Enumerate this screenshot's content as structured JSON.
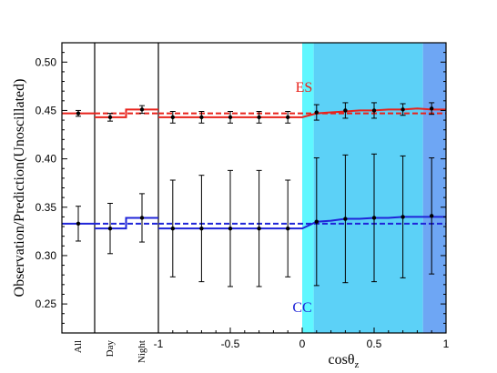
{
  "chart_data": {
    "type": "line",
    "ylabel": "Observation/Prediction(Unoscillated)",
    "xlabel_base": "cosθ",
    "xlabel_sub": "z",
    "ylim": [
      0.22,
      0.52
    ],
    "xlim": [
      -1,
      1
    ],
    "y_ticks": [
      0.25,
      0.3,
      0.35,
      0.4,
      0.45,
      0.5
    ],
    "y_tick_labels": [
      "0.25",
      "0.30",
      "0.35",
      "0.40",
      "0.45",
      "0.50"
    ],
    "x_ticks": [
      -1,
      -0.5,
      0,
      0.5,
      1
    ],
    "x_tick_labels": [
      "-1",
      "-0.5",
      "0",
      "0.5",
      "1"
    ],
    "categories": [
      "All",
      "Day",
      "Night"
    ],
    "grid": false,
    "shaded_bands": [
      {
        "x0": 0.0,
        "x1": 0.08,
        "color": "#5ff7ff"
      },
      {
        "x0": 0.08,
        "x1": 0.84,
        "color": "#5cd1f7"
      },
      {
        "x0": 0.84,
        "x1": 1.0,
        "color": "#6ea6f4"
      }
    ],
    "series": [
      {
        "name": "ES",
        "color": "#e8221b",
        "all": {
          "value": 0.447,
          "err": 0.003,
          "model": 0.447
        },
        "day": {
          "value": 0.443,
          "err": 0.004,
          "model": 0.443,
          "pred": 0.447
        },
        "night": {
          "value": 0.451,
          "err": 0.004,
          "model": 0.451,
          "pred": 0.447
        },
        "x": [
          -0.9,
          -0.7,
          -0.5,
          -0.3,
          -0.1,
          0.1,
          0.3,
          0.5,
          0.7,
          0.9
        ],
        "values": [
          0.443,
          0.443,
          0.443,
          0.443,
          0.443,
          0.448,
          0.45,
          0.45,
          0.451,
          0.452
        ],
        "errors": [
          0.006,
          0.006,
          0.006,
          0.006,
          0.006,
          0.008,
          0.008,
          0.008,
          0.006,
          0.006
        ],
        "model_x": [
          -1.0,
          0.0,
          0.1,
          0.2,
          0.3,
          0.4,
          0.5,
          0.6,
          0.7,
          0.8,
          0.9,
          1.0
        ],
        "model_y": [
          0.443,
          0.443,
          0.447,
          0.448,
          0.449,
          0.45,
          0.45,
          0.451,
          0.451,
          0.452,
          0.451,
          0.451
        ],
        "pred": 0.447
      },
      {
        "name": "CC",
        "color": "#1f24d8",
        "all": {
          "value": 0.333,
          "err": 0.018,
          "model": 0.333
        },
        "day": {
          "value": 0.328,
          "err": 0.026,
          "model": 0.328,
          "pred": 0.333
        },
        "night": {
          "value": 0.339,
          "err": 0.025,
          "model": 0.339,
          "pred": 0.333
        },
        "x": [
          -0.9,
          -0.7,
          -0.5,
          -0.3,
          -0.1,
          0.1,
          0.3,
          0.5,
          0.7,
          0.9
        ],
        "values": [
          0.328,
          0.328,
          0.328,
          0.328,
          0.328,
          0.335,
          0.338,
          0.339,
          0.34,
          0.341
        ],
        "errors": [
          0.05,
          0.055,
          0.06,
          0.06,
          0.05,
          0.066,
          0.066,
          0.066,
          0.063,
          0.06
        ],
        "model_x": [
          -1.0,
          0.0,
          0.1,
          0.2,
          0.3,
          0.4,
          0.5,
          0.6,
          0.7,
          0.8,
          0.9,
          1.0
        ],
        "model_y": [
          0.328,
          0.328,
          0.335,
          0.336,
          0.338,
          0.338,
          0.339,
          0.339,
          0.34,
          0.34,
          0.34,
          0.34
        ],
        "pred": 0.333
      }
    ]
  }
}
